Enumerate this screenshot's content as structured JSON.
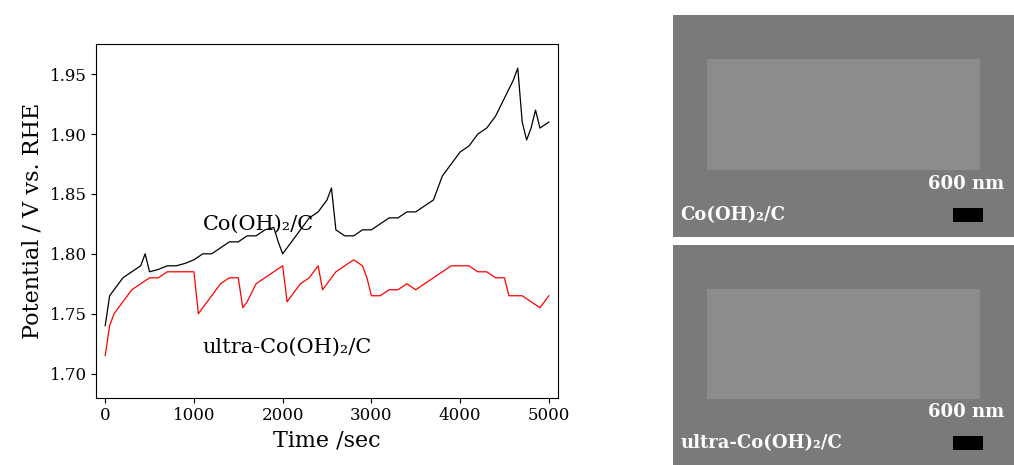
{
  "chart_data": {
    "type": "line",
    "xlabel": "Time /sec",
    "ylabel": "Potential / V vs. RHE",
    "xlim": [
      -100,
      5100
    ],
    "ylim": [
      1.68,
      1.975
    ],
    "xticks": [
      0,
      1000,
      2000,
      3000,
      4000,
      5000
    ],
    "yticks": [
      {
        "value": 1.7,
        "label": "1.70"
      },
      {
        "value": 1.75,
        "label": "1.75"
      },
      {
        "value": 1.8,
        "label": "1.80"
      },
      {
        "value": 1.85,
        "label": "1.85"
      },
      {
        "value": 1.9,
        "label": "1.90"
      },
      {
        "value": 1.95,
        "label": "1.95"
      }
    ],
    "grid": false,
    "series": [
      {
        "name": "Co(OH)₂/C",
        "color": "#000000",
        "x": [
          0,
          50,
          100,
          200,
          300,
          400,
          450,
          500,
          600,
          700,
          800,
          900,
          1000,
          1100,
          1200,
          1300,
          1400,
          1500,
          1600,
          1700,
          1800,
          1900,
          1950,
          2000,
          2100,
          2200,
          2300,
          2400,
          2500,
          2550,
          2600,
          2700,
          2800,
          2900,
          3000,
          3100,
          3200,
          3300,
          3400,
          3500,
          3600,
          3700,
          3750,
          3800,
          3900,
          4000,
          4100,
          4200,
          4300,
          4400,
          4500,
          4600,
          4650,
          4700,
          4750,
          4800,
          4850,
          4900,
          5000
        ],
        "values": [
          1.74,
          1.765,
          1.77,
          1.78,
          1.785,
          1.79,
          1.8,
          1.785,
          1.787,
          1.79,
          1.79,
          1.792,
          1.795,
          1.8,
          1.8,
          1.805,
          1.81,
          1.81,
          1.815,
          1.815,
          1.82,
          1.822,
          1.81,
          1.8,
          1.81,
          1.82,
          1.83,
          1.835,
          1.845,
          1.855,
          1.82,
          1.815,
          1.815,
          1.82,
          1.82,
          1.825,
          1.83,
          1.83,
          1.835,
          1.835,
          1.84,
          1.845,
          1.855,
          1.865,
          1.875,
          1.885,
          1.89,
          1.9,
          1.905,
          1.915,
          1.93,
          1.945,
          1.955,
          1.91,
          1.895,
          1.905,
          1.92,
          1.905,
          1.91
        ]
      },
      {
        "name": "ultra-Co(OH)₂/C",
        "color": "#ff0000",
        "x": [
          0,
          50,
          100,
          200,
          300,
          400,
          500,
          600,
          700,
          800,
          900,
          1000,
          1050,
          1100,
          1200,
          1300,
          1400,
          1500,
          1550,
          1600,
          1700,
          1800,
          1900,
          2000,
          2050,
          2100,
          2200,
          2300,
          2400,
          2450,
          2500,
          2600,
          2700,
          2800,
          2900,
          2950,
          3000,
          3100,
          3200,
          3300,
          3400,
          3500,
          3600,
          3700,
          3800,
          3900,
          4000,
          4100,
          4200,
          4300,
          4400,
          4500,
          4550,
          4600,
          4700,
          4800,
          4900,
          5000
        ],
        "values": [
          1.715,
          1.74,
          1.75,
          1.76,
          1.77,
          1.775,
          1.78,
          1.78,
          1.785,
          1.785,
          1.785,
          1.785,
          1.75,
          1.755,
          1.765,
          1.775,
          1.78,
          1.78,
          1.755,
          1.76,
          1.775,
          1.78,
          1.785,
          1.79,
          1.76,
          1.765,
          1.775,
          1.78,
          1.79,
          1.77,
          1.775,
          1.785,
          1.79,
          1.795,
          1.79,
          1.78,
          1.765,
          1.765,
          1.77,
          1.77,
          1.775,
          1.77,
          1.775,
          1.78,
          1.785,
          1.79,
          1.79,
          1.79,
          1.785,
          1.785,
          1.78,
          1.78,
          1.765,
          1.765,
          1.765,
          1.76,
          1.755,
          1.765
        ]
      }
    ]
  },
  "images": [
    {
      "label": "Co(OH)₂/C",
      "scale_bar": "600 nm"
    },
    {
      "label": "ultra-Co(OH)₂/C",
      "scale_bar": "600 nm"
    }
  ]
}
